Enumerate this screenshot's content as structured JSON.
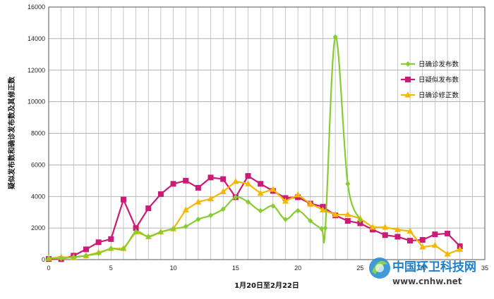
{
  "chart_data": {
    "type": "line",
    "title": "",
    "xlabel": "1月20日至2月22日",
    "ylabel": "疑似发布数和确诊发布数及其修正数",
    "xlim": [
      0,
      35
    ],
    "ylim": [
      0,
      16000
    ],
    "x_ticks": [
      0,
      5,
      10,
      15,
      20,
      25,
      30,
      35
    ],
    "y_ticks": [
      0,
      2000,
      4000,
      6000,
      8000,
      10000,
      12000,
      14000,
      16000
    ],
    "grid": true,
    "legend_position": "right",
    "x": [
      0,
      1,
      2,
      3,
      4,
      5,
      6,
      7,
      8,
      9,
      10,
      11,
      12,
      13,
      14,
      15,
      16,
      17,
      18,
      19,
      20,
      21,
      22,
      23,
      24,
      25,
      26,
      27,
      28,
      29,
      30,
      31,
      32,
      33
    ],
    "series": [
      {
        "name": "日确诊发布数",
        "color": "#88cc33",
        "marker": "diamond",
        "x": [
          0,
          1,
          2,
          3,
          4,
          5,
          6,
          7,
          8,
          9,
          10,
          11,
          12,
          13,
          14,
          15,
          16,
          17,
          18,
          19,
          20,
          21,
          21.9,
          22.2,
          23,
          24,
          25
        ],
        "values": [
          80,
          80,
          150,
          250,
          400,
          700,
          700,
          1750,
          1450,
          1750,
          1950,
          2100,
          2550,
          2800,
          3200,
          3950,
          3650,
          3100,
          3400,
          2550,
          3100,
          2450,
          1950,
          2000,
          14100,
          4800,
          2500
        ]
      },
      {
        "name": "日疑似发布数",
        "color": "#cc1a77",
        "marker": "square",
        "x": [
          0,
          1,
          2,
          3,
          4,
          5,
          6,
          7,
          8,
          9,
          10,
          11,
          12,
          13,
          14,
          15,
          16,
          17,
          18,
          19,
          20,
          21,
          22,
          23,
          24,
          25,
          26,
          27,
          28,
          29,
          30,
          31,
          32,
          33
        ],
        "values": [
          40,
          30,
          250,
          650,
          1100,
          1300,
          3800,
          2000,
          3250,
          4150,
          4800,
          5000,
          4550,
          5200,
          5100,
          3950,
          5300,
          4800,
          4350,
          3900,
          3950,
          3550,
          3350,
          2800,
          2450,
          2300,
          1900,
          1550,
          1450,
          1200,
          1250,
          1600,
          1650,
          850
        ]
      },
      {
        "name": "日确诊修正数",
        "color": "#f5b800",
        "marker": "triangle",
        "x": [
          0,
          1,
          2,
          3,
          4,
          5,
          6,
          7,
          8,
          9,
          10,
          11,
          12,
          13,
          14,
          15,
          16,
          17,
          18,
          19,
          20,
          21,
          22,
          23,
          24,
          25,
          26,
          27,
          28,
          29,
          30,
          31,
          32,
          33
        ],
        "values": [
          80,
          150,
          150,
          250,
          450,
          700,
          700,
          1750,
          1450,
          1750,
          1950,
          3150,
          3650,
          3850,
          4300,
          4950,
          4800,
          4200,
          4450,
          3700,
          4100,
          3550,
          3150,
          2850,
          2850,
          2600,
          2050,
          2050,
          1900,
          1800,
          800,
          900,
          350,
          650
        ]
      }
    ]
  },
  "watermark": {
    "logo_text": "中国环卫科技网",
    "url": "www.cnhw.net"
  }
}
